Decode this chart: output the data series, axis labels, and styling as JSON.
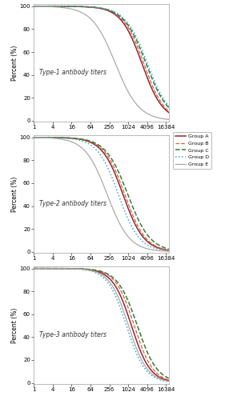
{
  "titles": [
    "Type-1 antibody titers",
    "Type-2 antibody titers",
    "Type-3 antibody titers"
  ],
  "ylabel": "Percent (%)",
  "xtick_labels": [
    "1",
    "4",
    "16",
    "64",
    "256",
    "1024",
    "4096",
    "16384"
  ],
  "xticks": [
    1,
    4,
    16,
    64,
    256,
    1024,
    4096,
    16384
  ],
  "groups": [
    "Group A",
    "Group B",
    "Group C",
    "Group D",
    "Group E"
  ],
  "colors": [
    "#9B2335",
    "#CC6633",
    "#3A7A3A",
    "#33AACC",
    "#AAAAAA"
  ],
  "linestyles": [
    "-",
    "--",
    "--",
    ":",
    "-"
  ],
  "linewidths": [
    1.1,
    0.9,
    1.1,
    1.1,
    0.9
  ],
  "type1": {
    "A": {
      "mid": 2800,
      "slope": 0.9
    },
    "B": {
      "mid": 3200,
      "slope": 0.9
    },
    "C": {
      "mid": 3800,
      "slope": 0.85
    },
    "D": {
      "mid": 4200,
      "slope": 0.85
    },
    "E": {
      "mid": 400,
      "slope": 0.8
    }
  },
  "type2": {
    "A": {
      "mid": 700,
      "slope": 0.9
    },
    "B": {
      "mid": 800,
      "slope": 0.9
    },
    "C": {
      "mid": 1000,
      "slope": 0.85
    },
    "D": {
      "mid": 500,
      "slope": 0.9
    },
    "E": {
      "mid": 220,
      "slope": 0.85
    }
  },
  "type3": {
    "A": {
      "mid": 1300,
      "slope": 1.0
    },
    "B": {
      "mid": 1600,
      "slope": 1.0
    },
    "C": {
      "mid": 2000,
      "slope": 0.95
    },
    "D": {
      "mid": 900,
      "slope": 1.0
    },
    "E": {
      "mid": 1050,
      "slope": 1.0
    }
  }
}
